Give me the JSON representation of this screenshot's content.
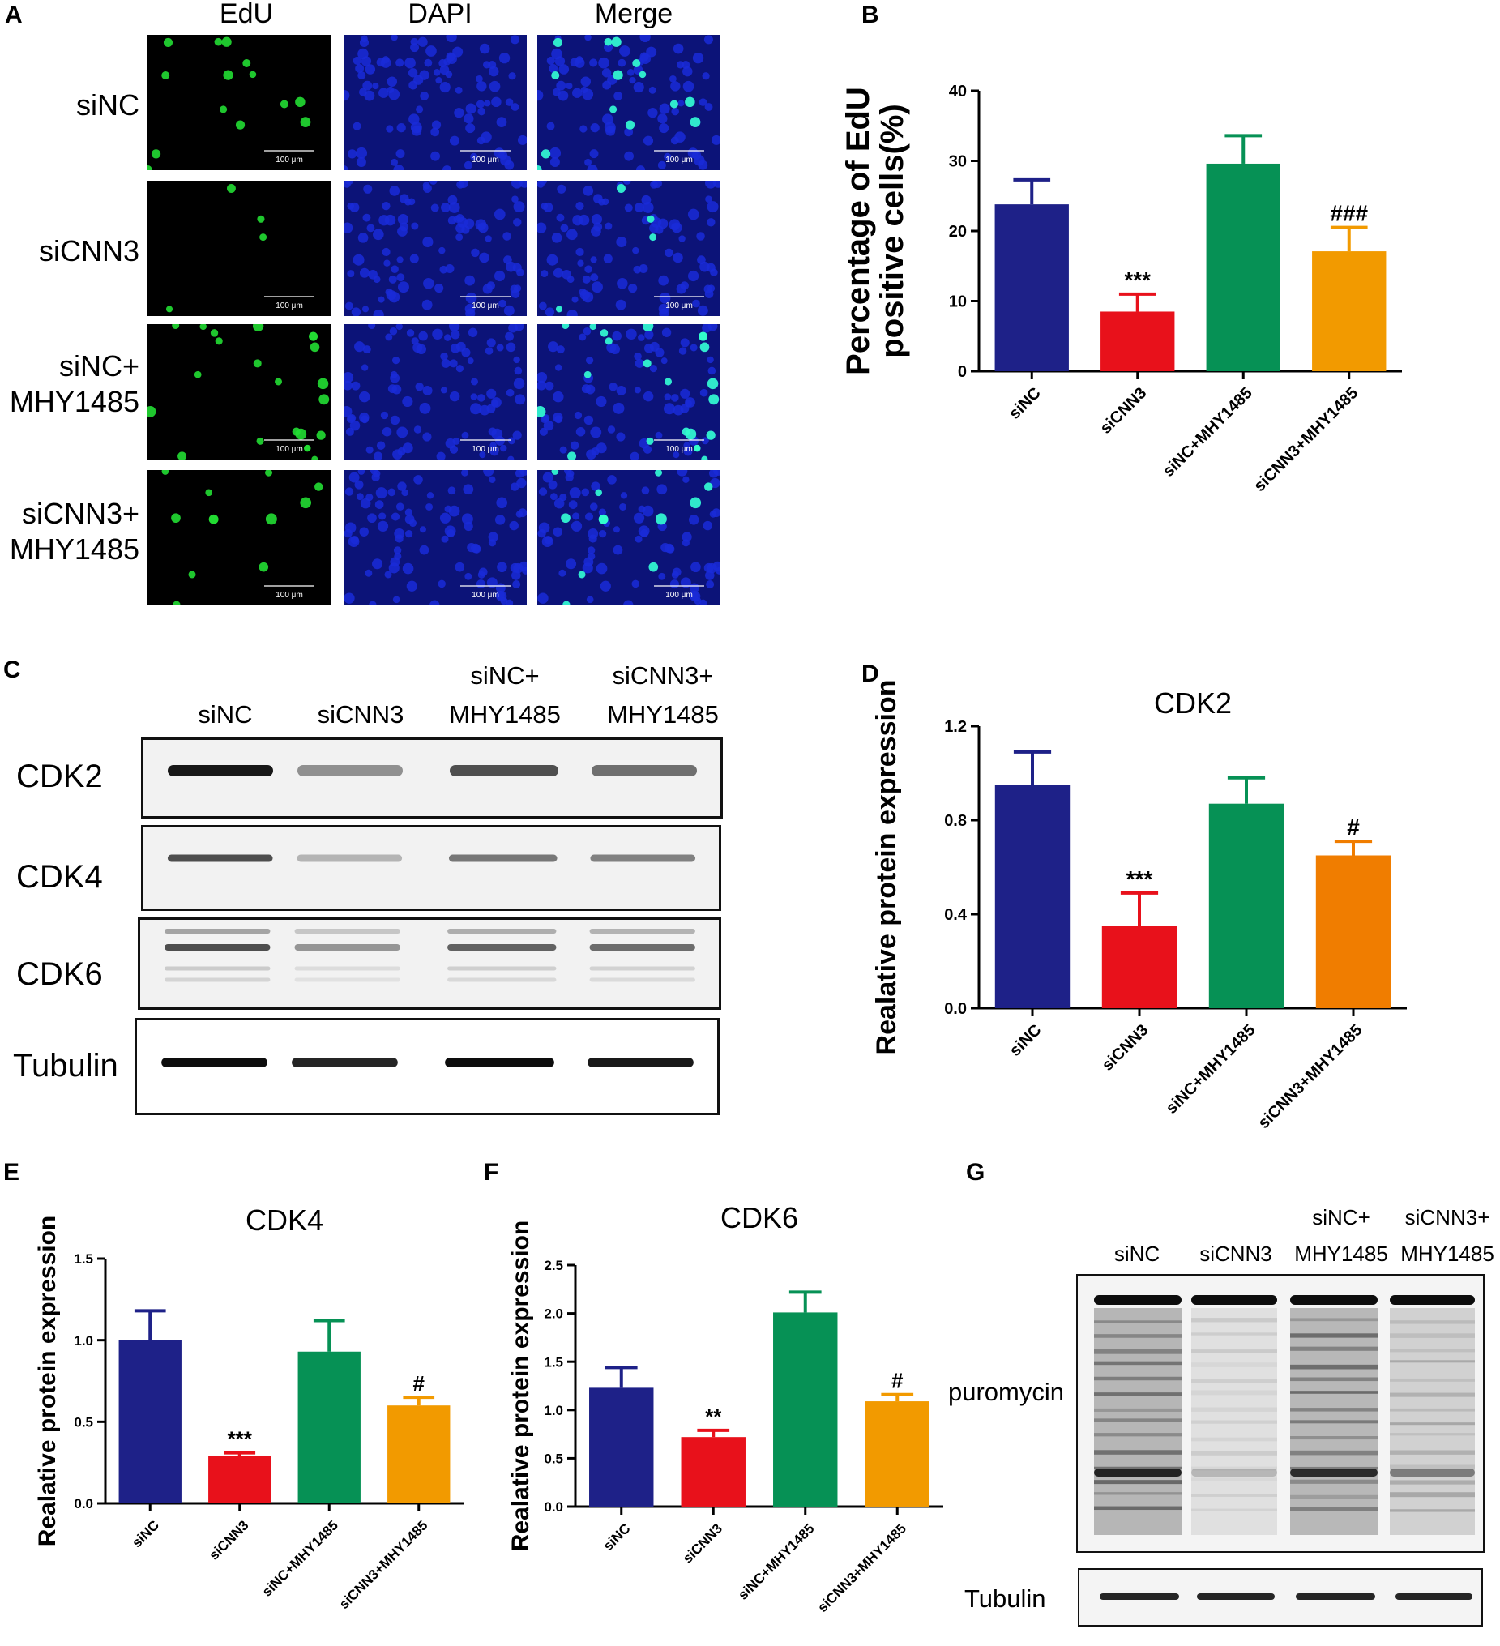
{
  "panel_letters": {
    "A": "A",
    "B": "B",
    "C": "C",
    "D": "D",
    "E": "E",
    "F": "F",
    "G": "G"
  },
  "panel_a": {
    "columns": [
      "EdU",
      "DAPI",
      "Merge"
    ],
    "rows": [
      {
        "line1": "siNC",
        "line2": ""
      },
      {
        "line1": "siCNN3",
        "line2": ""
      },
      {
        "line1": "siNC+",
        "line2": "MHY1485"
      },
      {
        "line1": "siCNN3+",
        "line2": "MHY1485"
      }
    ],
    "scale_bar": "100 μm",
    "colors": {
      "edu": "#22dd33",
      "dapi": "#1a2bd8",
      "merge_edu": "#33ffcc",
      "background_dapi": "#0c1378",
      "background_edu": "#000000"
    }
  },
  "panel_c": {
    "lanes": [
      {
        "line1": "",
        "line2": "siNC"
      },
      {
        "line1": "",
        "line2": "siCNN3"
      },
      {
        "line1": "siNC+",
        "line2": "MHY1485"
      },
      {
        "line1": "siCNN3+",
        "line2": "MHY1485"
      }
    ],
    "blots": [
      "CDK2",
      "CDK4",
      "CDK6",
      "Tubulin"
    ],
    "band_strength": {
      "CDK2": [
        1.0,
        0.45,
        0.75,
        0.6
      ],
      "CDK4": [
        0.8,
        0.3,
        0.6,
        0.55
      ],
      "CDK6": [
        0.8,
        0.45,
        0.7,
        0.65
      ],
      "Tubulin": [
        1.0,
        0.9,
        1.0,
        0.95
      ]
    }
  },
  "panel_g": {
    "lanes": [
      {
        "line1": "",
        "line2": "siNC"
      },
      {
        "line1": "",
        "line2": "siCNN3"
      },
      {
        "line1": "siNC+",
        "line2": "MHY1485"
      },
      {
        "line1": "siCNN3+",
        "line2": "MHY1485"
      }
    ],
    "blots": [
      "puromycin",
      "Tubulin"
    ],
    "lane_intensity": [
      0.9,
      0.2,
      0.85,
      0.45
    ]
  },
  "chart_data": [
    {
      "id": "B",
      "type": "bar",
      "title": "",
      "ylabel": "Percentage of EdU positive cells(%)",
      "ylabel_lines": [
        "Percentage of EdU",
        "positive cells(%)"
      ],
      "categories": [
        "siNC",
        "siCNN3",
        "siNC+MHY1485",
        "siCNN3+MHY1485"
      ],
      "values": [
        23.8,
        8.5,
        29.6,
        17.1
      ],
      "errors": [
        3.5,
        2.5,
        4.0,
        3.4
      ],
      "annotations": [
        "",
        "***",
        "",
        "###"
      ],
      "ylim": [
        0,
        40
      ],
      "yticks": [
        "0",
        "10",
        "20",
        "30",
        "40"
      ],
      "colors": [
        "#1e2188",
        "#e8111b",
        "#069155",
        "#f29a00"
      ]
    },
    {
      "id": "D",
      "type": "bar",
      "title": "CDK2",
      "ylabel": "Realative protein expression",
      "categories": [
        "siNC",
        "siCNN3",
        "siNC+MHY1485",
        "siCNN3+MHY1485"
      ],
      "values": [
        0.95,
        0.35,
        0.87,
        0.65
      ],
      "errors": [
        0.14,
        0.14,
        0.11,
        0.06
      ],
      "annotations": [
        "",
        "***",
        "",
        "#"
      ],
      "ylim": [
        0,
        1.2
      ],
      "yticks": [
        "0.0",
        "0.4",
        "0.8",
        "1.2"
      ],
      "colors": [
        "#1e2188",
        "#e8111b",
        "#069155",
        "#f07d00"
      ]
    },
    {
      "id": "E",
      "type": "bar",
      "title": "CDK4",
      "ylabel": "Realative protein expression",
      "categories": [
        "siNC",
        "siCNN3",
        "siNC+MHY1485",
        "siCNN3+MHY1485"
      ],
      "values": [
        1.0,
        0.29,
        0.93,
        0.6
      ],
      "errors": [
        0.18,
        0.02,
        0.19,
        0.05
      ],
      "annotations": [
        "",
        "***",
        "",
        "#"
      ],
      "ylim": [
        0,
        1.5
      ],
      "yticks": [
        "0.0",
        "0.5",
        "1.0",
        "1.5"
      ],
      "colors": [
        "#1e2188",
        "#e8111b",
        "#069155",
        "#f29a00"
      ]
    },
    {
      "id": "F",
      "type": "bar",
      "title": "CDK6",
      "ylabel": "Realative protein expression",
      "categories": [
        "siNC",
        "siCNN3",
        "siNC+MHY1485",
        "siCNN3+MHY1485"
      ],
      "values": [
        1.23,
        0.72,
        2.01,
        1.09
      ],
      "errors": [
        0.21,
        0.07,
        0.21,
        0.07
      ],
      "annotations": [
        "",
        "**",
        "",
        "#"
      ],
      "ylim": [
        0,
        2.5
      ],
      "yticks": [
        "0.0",
        "0.5",
        "1.0",
        "1.5",
        "2.0",
        "2.5"
      ],
      "colors": [
        "#1e2188",
        "#e8111b",
        "#069155",
        "#f29a00"
      ]
    }
  ]
}
